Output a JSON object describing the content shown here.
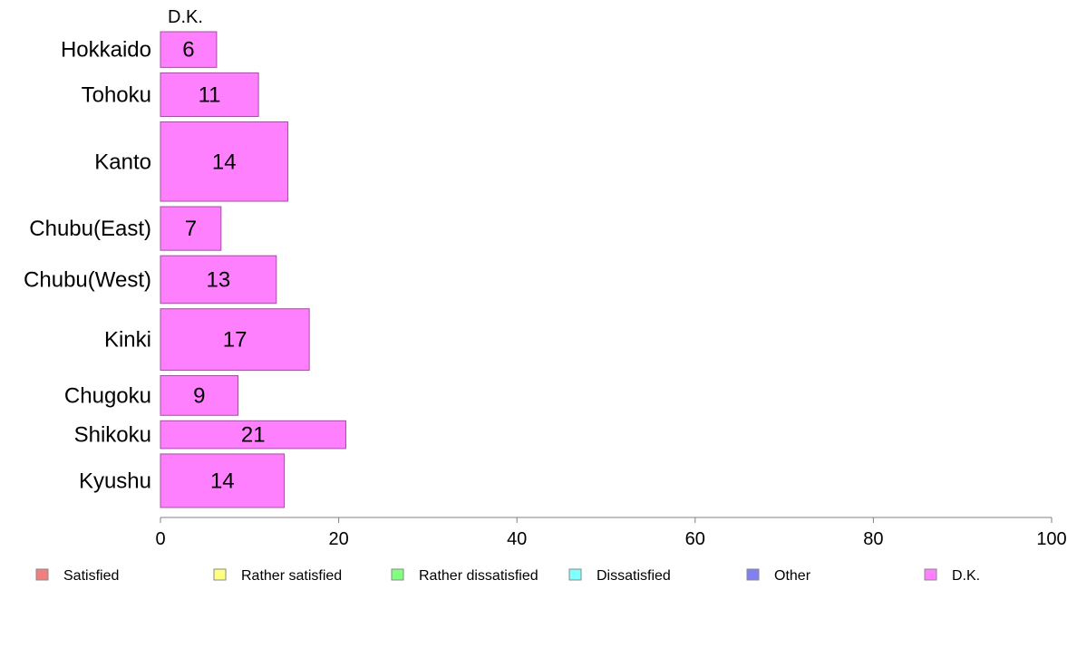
{
  "chart_data": {
    "type": "bar",
    "orientation": "horizontal",
    "stacked": true,
    "categories": [
      "Hokkaido",
      "Tohoku",
      "Kanto",
      "Chubu(East)",
      "Chubu(West)",
      "Kinki",
      "Chugoku",
      "Shikoku",
      "Kyushu"
    ],
    "category_weights": [
      0.72,
      0.88,
      1.6,
      0.88,
      0.96,
      1.24,
      0.8,
      0.56,
      1.08
    ],
    "series": [
      {
        "name": "Satisfied",
        "color": "#f08080",
        "values": [
          0,
          0,
          0,
          0,
          0,
          0,
          0,
          0,
          0
        ]
      },
      {
        "name": "Rather satisfied",
        "color": "#ffff80",
        "values": [
          0,
          0,
          0,
          0,
          0,
          0,
          0,
          0,
          0
        ]
      },
      {
        "name": "Rather dissatisfied",
        "color": "#80ff80",
        "values": [
          0,
          0,
          0,
          0,
          0,
          0,
          0,
          0,
          0
        ]
      },
      {
        "name": "Dissatisfied",
        "color": "#80ffff",
        "values": [
          0,
          0,
          0,
          0,
          0,
          0,
          0,
          0,
          0
        ]
      },
      {
        "name": "Other",
        "color": "#8080f0",
        "values": [
          0,
          0,
          0,
          0,
          0,
          0,
          0,
          0,
          0
        ]
      },
      {
        "name": "D.K.",
        "color": "#ff80ff",
        "values": [
          6.3,
          11.0,
          14.3,
          6.8,
          13.0,
          16.7,
          8.7,
          20.8,
          13.9
        ]
      }
    ],
    "data_labels": [
      "6",
      "11",
      "14",
      "7",
      "13",
      "17",
      "9",
      "21",
      "14"
    ],
    "series_header": "D.K.",
    "xlim": [
      0,
      100
    ],
    "xticks": [
      0,
      20,
      40,
      60,
      80,
      100
    ],
    "grid": false,
    "legend_position": "bottom"
  }
}
